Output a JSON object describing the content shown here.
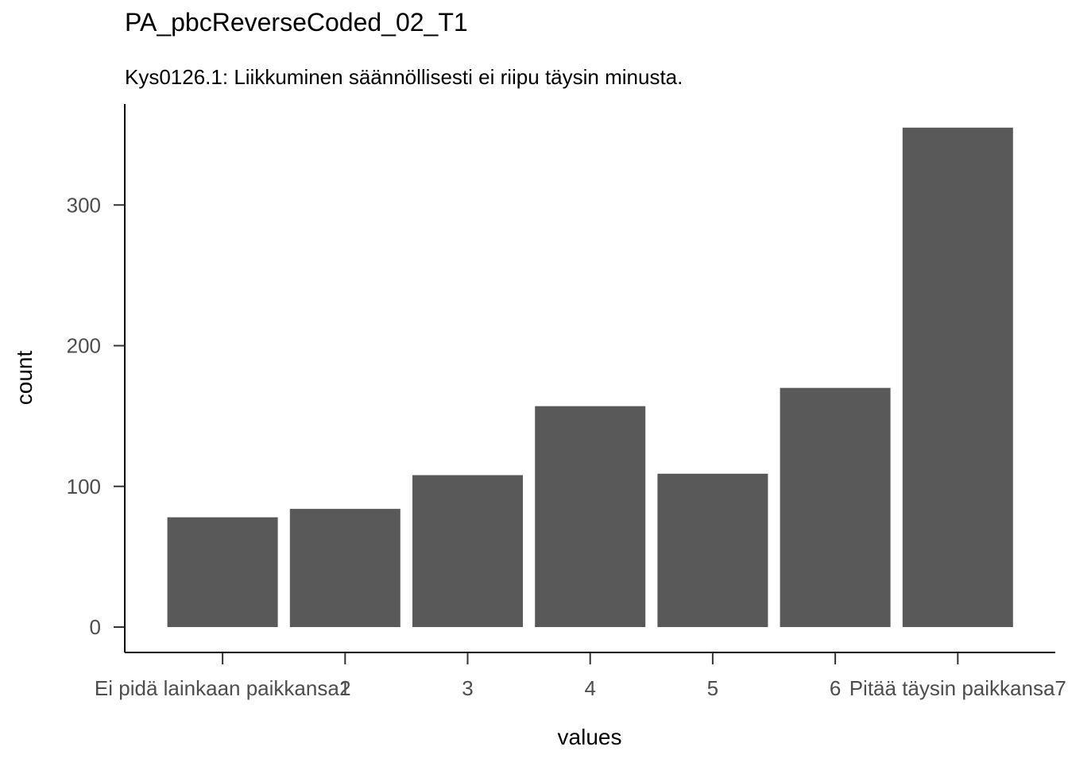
{
  "chart_data": {
    "type": "bar",
    "title": "PA_pbcReverseCoded_02_T1",
    "subtitle": "Kys0126.1: Liikkuminen säännöllisesti ei riipu täysin minusta.",
    "xlabel": "values",
    "ylabel": "count",
    "categories": [
      "Ei pidä lainkaan paikkansa1",
      "2",
      "3",
      "4",
      "5",
      "6",
      "Pitää täysin paikkansa7"
    ],
    "values": [
      78,
      84,
      108,
      157,
      109,
      170,
      355
    ],
    "ylim": [
      -18,
      372
    ],
    "yticks": [
      0,
      100,
      200,
      300
    ],
    "ytick_labels": [
      "0",
      "100",
      "200",
      "300"
    ],
    "bar_color": "#595959",
    "axis_color": "#000000",
    "grid": false,
    "legend": "none"
  }
}
